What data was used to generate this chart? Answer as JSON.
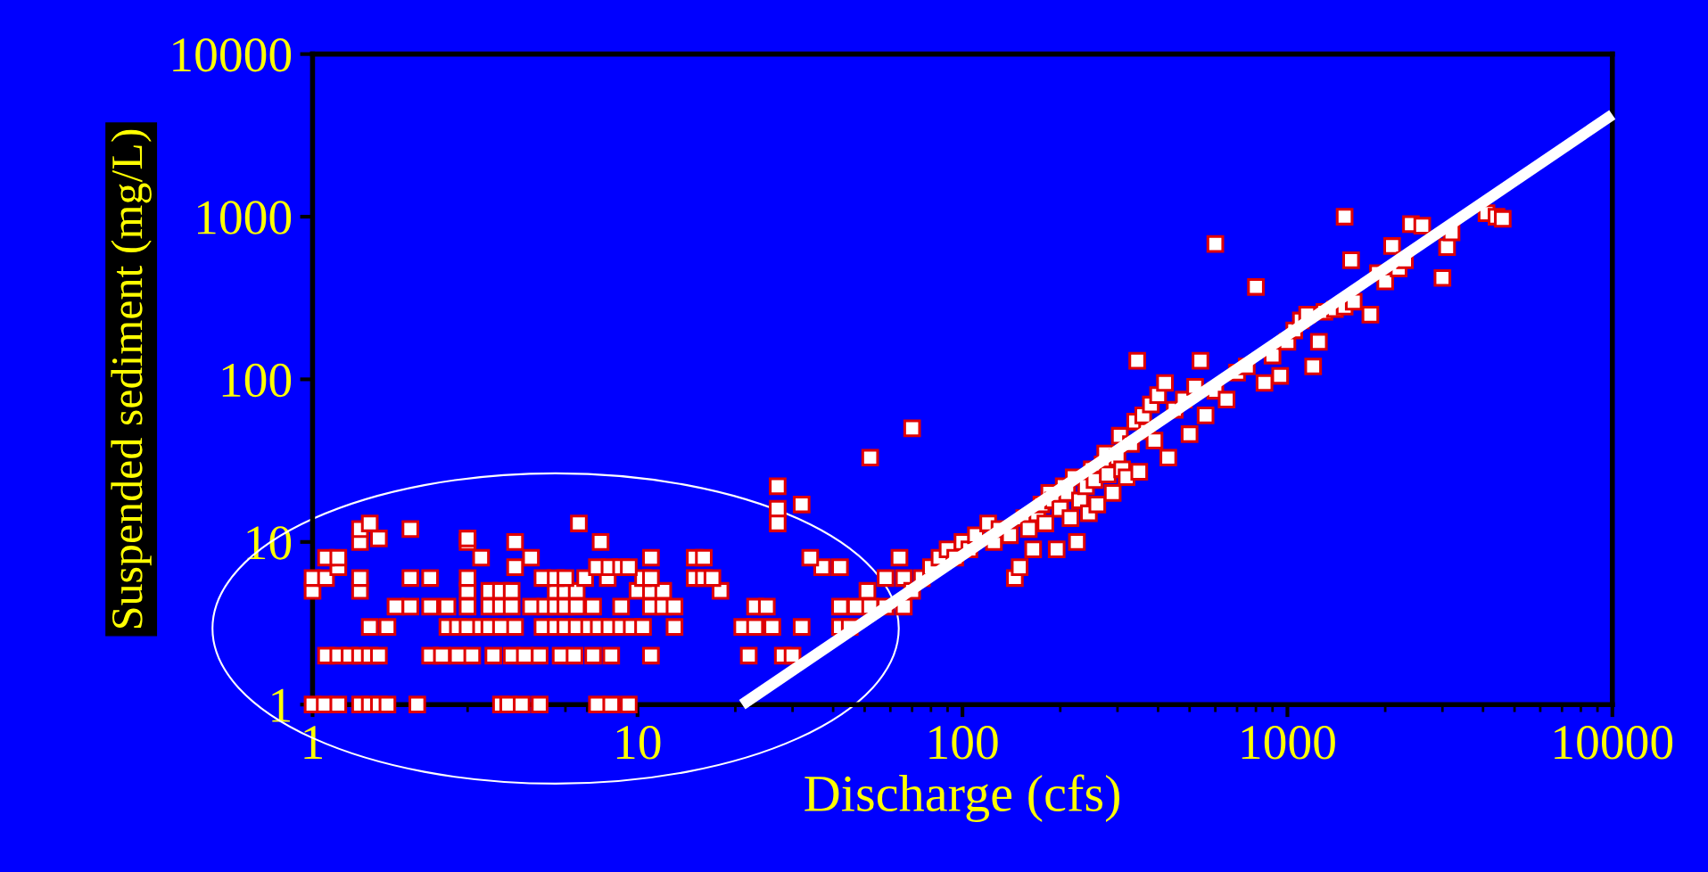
{
  "chart_data": {
    "type": "scatter",
    "xlabel": "Discharge (cfs)",
    "ylabel": "Suspended sediment (mg/L)",
    "log": "xy",
    "xlim": [
      1,
      10000
    ],
    "xticks": [
      1,
      10,
      100,
      1000,
      10000
    ],
    "ylim": [
      1,
      10000
    ],
    "yticks": [
      1,
      10,
      100,
      1000,
      10000
    ],
    "grid": false,
    "series": [
      {
        "marker": "square",
        "color": "#e00000",
        "x": [
          1,
          1.09,
          1.2,
          1.4,
          1.5,
          1.6,
          1.7,
          2.1,
          3.8,
          4.0,
          4.4,
          5.0,
          7.5,
          8.3,
          9.4,
          1.1,
          1.2,
          1.3,
          1.4,
          1.5,
          1.6,
          2.3,
          2.5,
          2.8,
          3.1,
          3.6,
          4.1,
          4.5,
          5,
          5.8,
          6.4,
          7.3,
          8.3,
          11,
          22,
          28,
          30,
          1.5,
          1.7,
          2.6,
          2.8,
          3.0,
          3.3,
          3.5,
          3.8,
          4.2,
          5.1,
          5.6,
          6.0,
          6.5,
          7.1,
          7.6,
          8.2,
          8.9,
          9.6,
          10.4,
          13,
          21,
          23,
          26,
          32,
          42,
          45,
          1.8,
          2.0,
          2.3,
          2.6,
          3.0,
          3.5,
          3.8,
          4.1,
          4.7,
          5.2,
          5.6,
          6.0,
          6.5,
          7.3,
          8.9,
          11,
          12,
          13,
          23,
          25,
          42,
          47,
          52,
          58,
          66,
          1,
          1.4,
          3.0,
          3.5,
          3.8,
          4.1,
          5.6,
          6,
          6.5,
          10,
          11,
          12,
          18,
          51,
          1,
          1.1,
          1.4,
          2,
          2.3,
          3.0,
          5.1,
          5.6,
          6,
          6.9,
          8.1,
          10.4,
          11,
          15,
          16,
          17,
          58,
          66,
          1.2,
          4.2,
          7.5,
          8.2,
          8.9,
          9.4,
          37,
          42,
          1.1,
          1.2,
          3.3,
          4.7,
          11,
          15,
          16,
          34,
          64,
          1.4,
          3.0,
          4.2,
          7.7,
          1.6,
          3.0,
          2.0,
          1.4,
          1.5,
          6.6,
          27,
          27,
          32,
          27,
          52,
          70,
          70,
          75,
          80,
          85,
          90,
          95,
          100,
          105,
          110,
          120,
          125,
          130,
          140,
          145,
          150,
          155,
          160,
          165,
          170,
          175,
          180,
          185,
          190,
          195,
          200,
          205,
          210,
          215,
          220,
          225,
          230,
          240,
          245,
          250,
          255,
          260,
          270,
          275,
          280,
          290,
          300,
          305,
          310,
          320,
          330,
          340,
          345,
          350,
          360,
          370,
          380,
          390,
          400,
          420,
          430,
          450,
          480,
          500,
          520,
          540,
          560,
          600,
          600,
          650,
          700,
          750,
          800,
          850,
          900,
          950,
          1000,
          1050,
          1100,
          1150,
          1200,
          1250,
          1300,
          1400,
          1500,
          1500,
          1570,
          1600,
          1800,
          1900,
          2000,
          2100,
          2200,
          2300,
          2400,
          2600,
          3000,
          3100,
          3200,
          4100,
          4400,
          4600
        ],
        "values": [
          1,
          1,
          1,
          1,
          1,
          1,
          1,
          1,
          1,
          1,
          1,
          1,
          1,
          1,
          1,
          2,
          2,
          2,
          2,
          2,
          2,
          2,
          2,
          2,
          2,
          2,
          2,
          2,
          2,
          2,
          2,
          2,
          2,
          2,
          2,
          2,
          2,
          3,
          3,
          3,
          3,
          3,
          3,
          3,
          3,
          3,
          3,
          3,
          3,
          3,
          3,
          3,
          3,
          3,
          3,
          3,
          3,
          3,
          3,
          3,
          3,
          3,
          3,
          4,
          4,
          4,
          4,
          4,
          4,
          4,
          4,
          4,
          4,
          4,
          4,
          4,
          4,
          4,
          4,
          4,
          4,
          4,
          4,
          4,
          4,
          4,
          4,
          4,
          5,
          5,
          5,
          5,
          5,
          5,
          5,
          5,
          5,
          5,
          5,
          5,
          5,
          5,
          6,
          6,
          6,
          6,
          6,
          6,
          6,
          6,
          6,
          6,
          6,
          6,
          6,
          6,
          6,
          6,
          6,
          6,
          7,
          7,
          7,
          7,
          7,
          7,
          7,
          7,
          8,
          8,
          8,
          8,
          8,
          8,
          8,
          8,
          8,
          10,
          10,
          10,
          10,
          10.5,
          10.5,
          12,
          12,
          13,
          13,
          16,
          13,
          17,
          22,
          33,
          50,
          5,
          6,
          7,
          8,
          9,
          8,
          10,
          9,
          11,
          13,
          10,
          12,
          11,
          6,
          7,
          14,
          12,
          9,
          15,
          17,
          13,
          20,
          18,
          9,
          16,
          22,
          20,
          14,
          25,
          10,
          18,
          22,
          15,
          28,
          24,
          17,
          30,
          35,
          26,
          20,
          33,
          45,
          28,
          25,
          40,
          55,
          130,
          27,
          60,
          48,
          70,
          42,
          80,
          95,
          33,
          65,
          75,
          46,
          90,
          130,
          60,
          85,
          680,
          75,
          110,
          120,
          370,
          95,
          140,
          105,
          170,
          200,
          230,
          250,
          120,
          170,
          260,
          270,
          280,
          1000,
          540,
          300,
          250,
          450,
          400,
          660,
          480,
          540,
          900,
          880,
          420,
          650,
          800,
          1050,
          1000,
          970
        ]
      },
      {
        "type": "line",
        "marker": "none",
        "color": "#ffffff",
        "x": [
          21,
          10000
        ],
        "values": [
          1,
          4240
        ]
      }
    ]
  }
}
